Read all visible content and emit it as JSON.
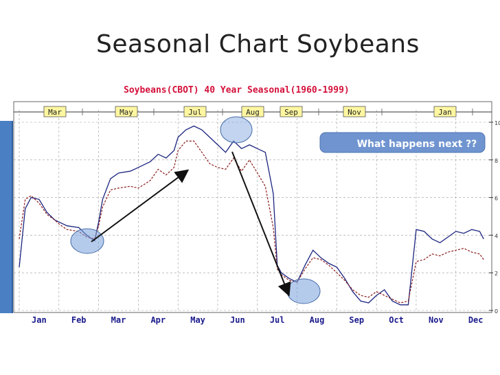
{
  "slide": {
    "title": "Seasonal Chart Soybeans"
  },
  "chart_data": {
    "type": "line",
    "subtitle": "Soybeans(CBOT) 40 Year Seasonal(1960-1999)",
    "top_axis_months": [
      "Mar",
      "May",
      "Jul",
      "Aug",
      "Sep",
      "Nov",
      "Jan"
    ],
    "bottom_axis_months": [
      "Jan",
      "Feb",
      "Mar",
      "Apr",
      "May",
      "Jun",
      "Jul",
      "Aug",
      "Sep",
      "Oct",
      "Nov",
      "Dec"
    ],
    "y_ticks": [
      "10",
      "8",
      "6",
      "4",
      "2",
      "0"
    ],
    "ylim": [
      0,
      10
    ],
    "annotation": "What happens next ??",
    "series": [
      {
        "color": "#1a237e",
        "x": [
          0,
          0.15,
          0.3,
          0.5,
          0.7,
          0.9,
          1.0,
          1.2,
          1.5,
          1.7,
          1.9,
          2.0,
          2.1,
          2.3,
          2.5,
          2.8,
          3.0,
          3.3,
          3.5,
          3.7,
          3.9,
          4.0,
          4.2,
          4.4,
          4.6,
          4.8,
          5.0,
          5.2,
          5.4,
          5.6,
          5.8,
          6.0,
          6.2,
          6.4,
          6.5,
          6.6,
          6.8,
          7.0,
          7.2,
          7.4,
          7.6,
          7.8,
          8.0,
          8.2,
          8.4,
          8.6,
          8.8,
          9.0,
          9.2,
          9.4,
          9.6,
          9.8,
          10.0,
          10.2,
          10.4,
          10.6,
          10.8,
          11.0,
          11.2,
          11.4,
          11.6,
          11.7
        ],
        "y": [
          2.3,
          5.4,
          6.0,
          5.9,
          5.2,
          4.8,
          4.7,
          4.5,
          4.4,
          4.0,
          3.7,
          4.7,
          5.9,
          7.0,
          7.3,
          7.4,
          7.6,
          7.9,
          8.3,
          8.1,
          8.5,
          9.2,
          9.6,
          9.8,
          9.6,
          9.2,
          8.8,
          8.4,
          9.0,
          8.6,
          8.8,
          8.6,
          8.4,
          6.2,
          2.4,
          2.0,
          1.7,
          1.5,
          2.4,
          3.2,
          2.8,
          2.5,
          2.3,
          1.7,
          1.0,
          0.5,
          0.4,
          0.8,
          1.1,
          0.5,
          0.3,
          0.3,
          4.3,
          4.2,
          3.8,
          3.6,
          3.9,
          4.2,
          4.1,
          4.3,
          4.2,
          3.8
        ]
      },
      {
        "color": "#8b1a1a",
        "x": [
          0,
          0.15,
          0.3,
          0.5,
          0.7,
          0.9,
          1.0,
          1.2,
          1.5,
          1.7,
          1.9,
          2.0,
          2.1,
          2.3,
          2.5,
          2.8,
          3.0,
          3.3,
          3.5,
          3.7,
          3.9,
          4.0,
          4.2,
          4.4,
          4.6,
          4.8,
          5.0,
          5.2,
          5.4,
          5.6,
          5.8,
          6.0,
          6.2,
          6.4,
          6.5,
          6.6,
          6.8,
          7.0,
          7.2,
          7.4,
          7.6,
          7.8,
          8.0,
          8.2,
          8.4,
          8.6,
          8.8,
          9.0,
          9.2,
          9.4,
          9.6,
          9.8,
          10.0,
          10.2,
          10.4,
          10.6,
          10.8,
          11.0,
          11.2,
          11.4,
          11.6,
          11.7
        ],
        "y": [
          3.8,
          5.9,
          6.1,
          5.7,
          5.1,
          4.8,
          4.6,
          4.3,
          4.2,
          3.9,
          3.8,
          4.5,
          5.5,
          6.4,
          6.5,
          6.6,
          6.5,
          6.9,
          7.5,
          7.2,
          7.6,
          8.5,
          9.0,
          9.0,
          8.4,
          7.8,
          7.6,
          7.5,
          8.1,
          7.4,
          8.0,
          7.3,
          6.6,
          4.4,
          2.2,
          1.9,
          1.6,
          1.5,
          2.2,
          2.8,
          2.7,
          2.4,
          2.0,
          1.6,
          1.1,
          0.8,
          0.7,
          1.0,
          0.8,
          0.6,
          0.4,
          0.5,
          2.6,
          2.7,
          3.0,
          2.9,
          3.1,
          3.2,
          3.3,
          3.1,
          3.0,
          2.7
        ]
      }
    ]
  }
}
